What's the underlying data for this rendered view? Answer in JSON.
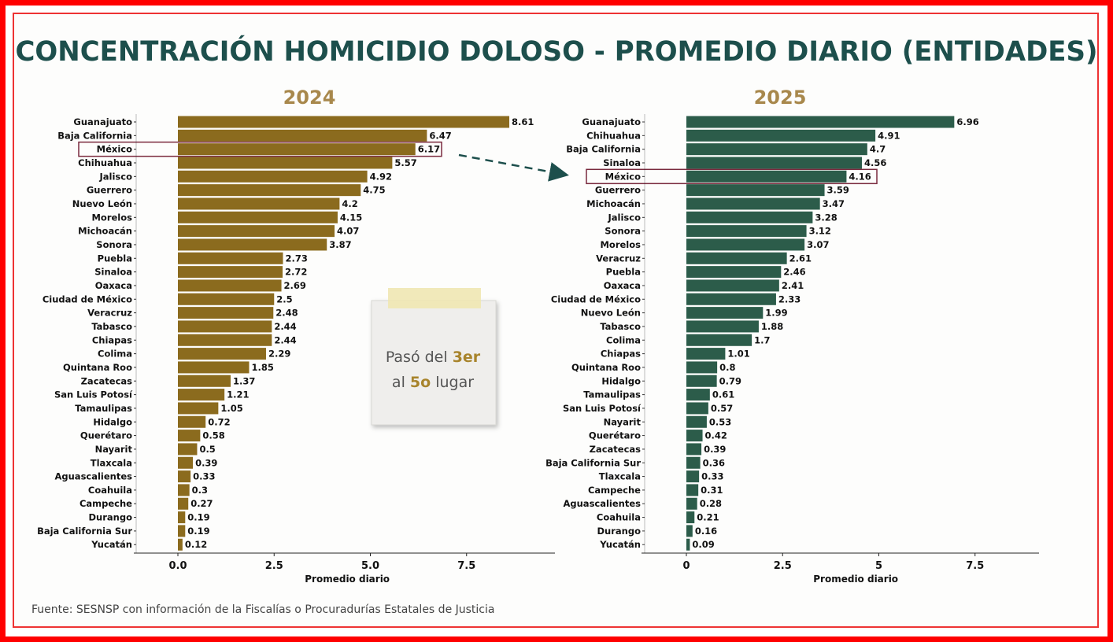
{
  "title": "CONCENTRACIÓN HOMICIDIO DOLOSO - PROMEDIO DIARIO (ENTIDADES)",
  "source": "Fuente: SESNSP con información de la Fiscalías o Procuradurías Estatales de Justicia",
  "note": {
    "prefix": "Pasó del ",
    "highlight1": "3er",
    "middle": "al ",
    "highlight2": "5o",
    "suffix": " lugar"
  },
  "colors": {
    "title": "#1d4f4c",
    "bar2024": "#8b6b1e",
    "bar2025": "#2c5c4a",
    "year": "#a8884c",
    "highlight_box": "#7a2a3e",
    "note_highlight": "#a8842c"
  },
  "chart_data": [
    {
      "type": "bar",
      "orientation": "horizontal",
      "title": "2024",
      "xlabel": "Promedio diario",
      "xlim": [
        0,
        9.5
      ],
      "xticks": [
        "0.0",
        "2.5",
        "5.0",
        "7.5"
      ],
      "highlight": "México",
      "categories": [
        "Guanajuato",
        "Baja California",
        "México",
        "Chihuahua",
        "Jalisco",
        "Guerrero",
        "Nuevo León",
        "Morelos",
        "Michoacán",
        "Sonora",
        "Puebla",
        "Sinaloa",
        "Oaxaca",
        "Ciudad de México",
        "Veracruz",
        "Tabasco",
        "Chiapas",
        "Colima",
        "Quintana Roo",
        "Zacatecas",
        "San Luis Potosí",
        "Tamaulipas",
        "Hidalgo",
        "Querétaro",
        "Nayarit",
        "Tlaxcala",
        "Aguascalientes",
        "Coahuila",
        "Campeche",
        "Durango",
        "Baja California Sur",
        "Yucatán"
      ],
      "values": [
        8.61,
        6.47,
        6.17,
        5.57,
        4.92,
        4.75,
        4.2,
        4.15,
        4.07,
        3.87,
        2.73,
        2.72,
        2.69,
        2.5,
        2.48,
        2.44,
        2.44,
        2.29,
        1.85,
        1.37,
        1.21,
        1.05,
        0.72,
        0.58,
        0.5,
        0.39,
        0.33,
        0.3,
        0.27,
        0.19,
        0.19,
        0.12
      ]
    },
    {
      "type": "bar",
      "orientation": "horizontal",
      "title": "2025",
      "xlabel": "Promedio diario",
      "xlim": [
        0,
        9.5
      ],
      "xticks": [
        "0",
        "2.5",
        "5",
        "7.5"
      ],
      "highlight": "México",
      "categories": [
        "Guanajuato",
        "Chihuahua",
        "Baja California",
        "Sinaloa",
        "México",
        "Guerrero",
        "Michoacán",
        "Jalisco",
        "Sonora",
        "Morelos",
        "Veracruz",
        "Puebla",
        "Oaxaca",
        "Ciudad de México",
        "Nuevo León",
        "Tabasco",
        "Colima",
        "Chiapas",
        "Quintana Roo",
        "Hidalgo",
        "Tamaulipas",
        "San Luis Potosí",
        "Nayarit",
        "Querétaro",
        "Zacatecas",
        "Baja California Sur",
        "Tlaxcala",
        "Campeche",
        "Aguascalientes",
        "Coahuila",
        "Durango",
        "Yucatán"
      ],
      "values": [
        6.96,
        4.91,
        4.7,
        4.56,
        4.16,
        3.59,
        3.47,
        3.28,
        3.12,
        3.07,
        2.61,
        2.46,
        2.41,
        2.33,
        1.99,
        1.88,
        1.7,
        1.01,
        0.8,
        0.79,
        0.61,
        0.57,
        0.53,
        0.42,
        0.39,
        0.36,
        0.33,
        0.31,
        0.28,
        0.21,
        0.16,
        0.09
      ]
    }
  ]
}
